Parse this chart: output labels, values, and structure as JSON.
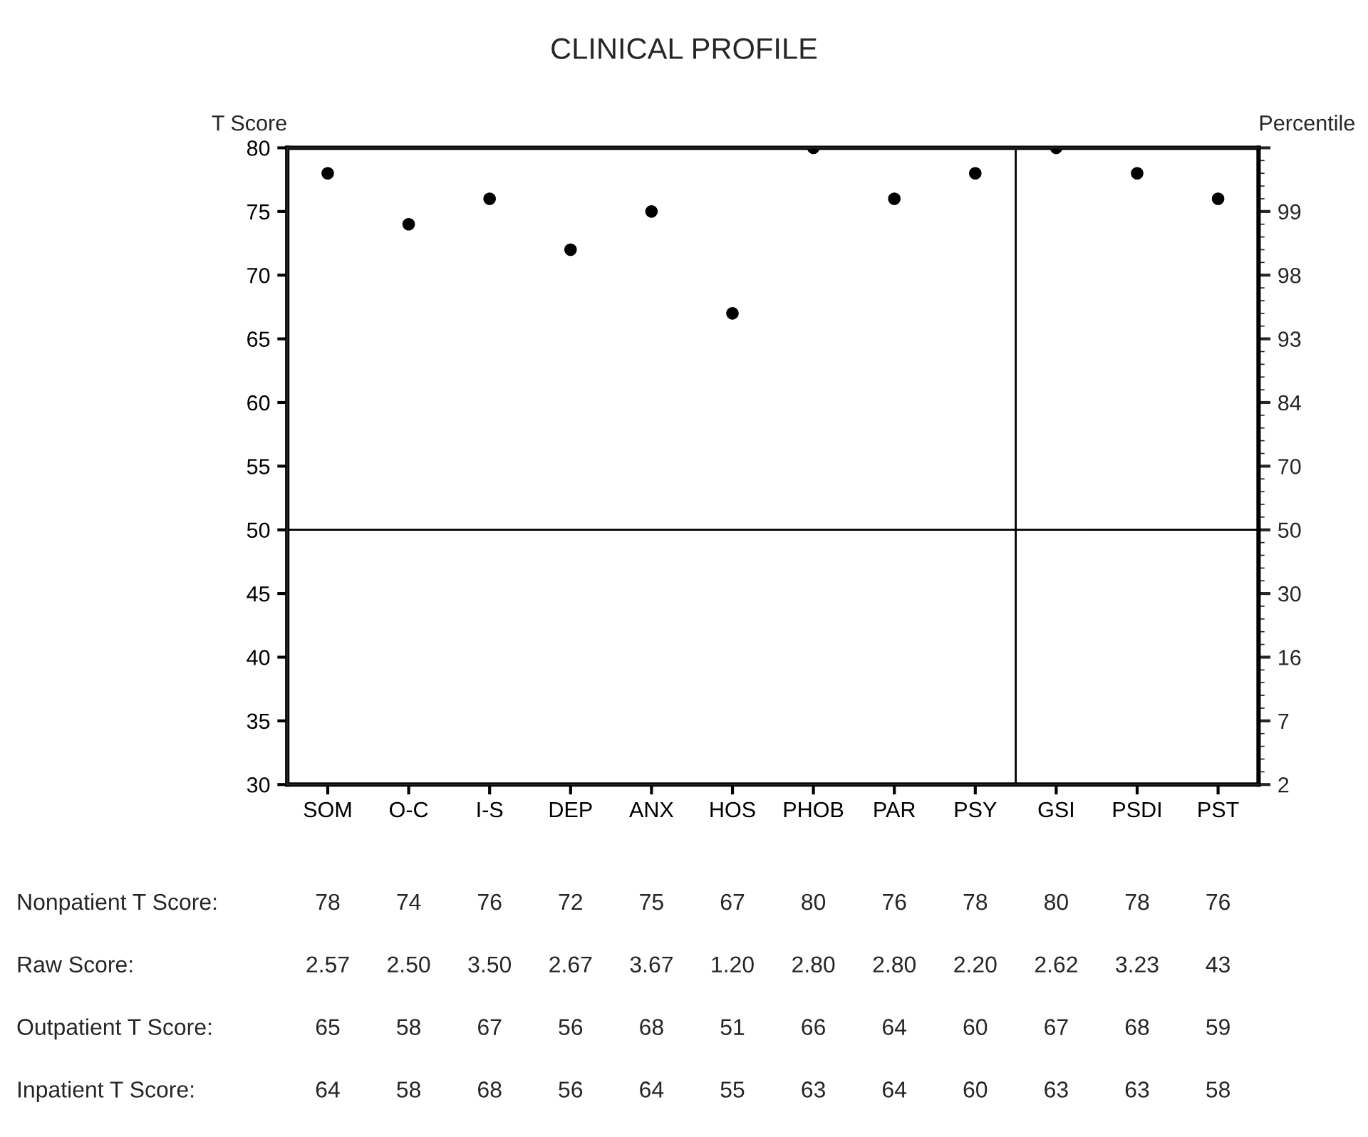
{
  "chart_data": {
    "type": "scatter",
    "title": "CLINICAL PROFILE",
    "ylabel": "T Score",
    "y2label": "Percentile",
    "categories": [
      "SOM",
      "O-C",
      "I-S",
      "DEP",
      "ANX",
      "HOS",
      "PHOB",
      "PAR",
      "PSY",
      "GSI",
      "PSDI",
      "PST"
    ],
    "series": [
      {
        "name": "Nonpatient T Score:",
        "color": "#000000",
        "values": [
          78,
          74,
          76,
          72,
          75,
          67,
          80,
          76,
          78,
          80,
          78,
          76
        ]
      }
    ],
    "data_labels": true,
    "marker": "circle",
    "ylim": [
      30,
      80
    ],
    "yticks": [
      30,
      35,
      40,
      45,
      50,
      55,
      60,
      65,
      70,
      75,
      80
    ],
    "ref_lines": [
      {
        "axis": "y",
        "value": 50,
        "color": "#000000"
      }
    ],
    "annotations": [
      "2",
      "7",
      "16",
      "30",
      "50",
      "70",
      "84",
      "93",
      "98",
      "99",
      "Raw Score:",
      "2.57",
      "2.50",
      "3.50",
      "2.67",
      "3.67",
      "1.20",
      "2.80",
      "2.80",
      "2.20",
      "2.62",
      "3.23",
      "43",
      "Outpatient T Score:",
      "65",
      "58",
      "67",
      "56",
      "68",
      "51",
      "66",
      "64",
      "60",
      "67",
      "68",
      "59",
      "Inpatient T Score:",
      "64",
      "58",
      "68",
      "56",
      "64",
      "55",
      "63",
      "64",
      "60",
      "63",
      "63",
      "58"
    ],
    "grid": false,
    "legend": false
  }
}
